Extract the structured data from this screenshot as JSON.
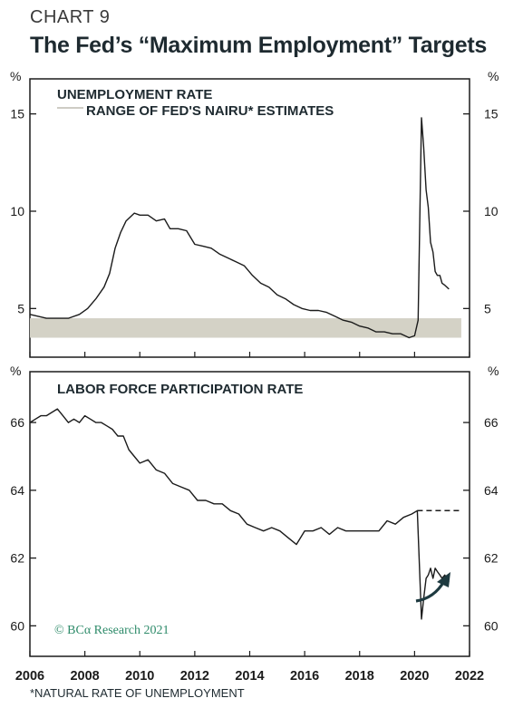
{
  "header": {
    "chart_number": "CHART 9",
    "title": "The Fed’s “Maximum Employment” Targets"
  },
  "footnote": "*NATURAL RATE OF UNEMPLOYMENT",
  "copyright": "© BCα Research 2021",
  "colors": {
    "line": "#1b1b1b",
    "band": "#d4d2c6",
    "copyright": "#2e8b6a",
    "arrow": "#1e3a40"
  },
  "x_axis": {
    "ticks": [
      "2006",
      "2008",
      "2010",
      "2012",
      "2014",
      "2016",
      "2018",
      "2020",
      "2022"
    ]
  },
  "chart_data": [
    {
      "type": "line",
      "panel": "top",
      "unit_label": "%",
      "legend": [
        "UNEMPLOYMENT RATE",
        "RANGE OF FED'S NAIRU* ESTIMATES"
      ],
      "xlim": [
        2006.0,
        2022.0
      ],
      "ylim": [
        2.5,
        16.8
      ],
      "yticks": [
        5,
        10,
        15
      ],
      "band": {
        "name": "RANGE OF FED'S NAIRU* ESTIMATES",
        "y0": 3.5,
        "y1": 4.5,
        "x0": 2006.0,
        "x1": 2021.7
      },
      "series": [
        {
          "name": "UNEMPLOYMENT RATE",
          "x": [
            2006.0,
            2006.3,
            2006.6,
            2007.0,
            2007.4,
            2007.8,
            2008.1,
            2008.4,
            2008.7,
            2008.9,
            2009.1,
            2009.3,
            2009.5,
            2009.8,
            2010.0,
            2010.3,
            2010.6,
            2010.9,
            2011.1,
            2011.4,
            2011.7,
            2012.0,
            2012.3,
            2012.6,
            2012.9,
            2013.2,
            2013.5,
            2013.8,
            2014.1,
            2014.4,
            2014.7,
            2015.0,
            2015.3,
            2015.6,
            2015.9,
            2016.2,
            2016.5,
            2016.8,
            2017.1,
            2017.4,
            2017.7,
            2018.0,
            2018.3,
            2018.6,
            2018.9,
            2019.2,
            2019.5,
            2019.8,
            2020.0,
            2020.13,
            2020.25,
            2020.33,
            2020.42,
            2020.5,
            2020.58,
            2020.67,
            2020.75,
            2020.83,
            2020.92,
            2021.0,
            2021.1,
            2021.25
          ],
          "values": [
            4.7,
            4.6,
            4.5,
            4.5,
            4.5,
            4.7,
            5.0,
            5.5,
            6.1,
            6.8,
            8.1,
            8.9,
            9.5,
            9.9,
            9.8,
            9.8,
            9.5,
            9.6,
            9.1,
            9.1,
            9.0,
            8.3,
            8.2,
            8.1,
            7.8,
            7.6,
            7.4,
            7.2,
            6.7,
            6.3,
            6.1,
            5.7,
            5.5,
            5.2,
            5.0,
            4.9,
            4.9,
            4.8,
            4.6,
            4.4,
            4.3,
            4.1,
            4.0,
            3.8,
            3.8,
            3.7,
            3.7,
            3.5,
            3.6,
            4.4,
            14.8,
            13.3,
            11.1,
            10.2,
            8.4,
            7.9,
            6.9,
            6.7,
            6.7,
            6.3,
            6.2,
            6.0
          ]
        }
      ]
    },
    {
      "type": "line",
      "panel": "bottom",
      "unit_label": "%",
      "legend": [
        "LABOR FORCE PARTICIPATION RATE"
      ],
      "xlim": [
        2006.0,
        2022.0
      ],
      "ylim": [
        59.1,
        67.5
      ],
      "yticks": [
        60,
        62,
        64,
        66
      ],
      "reference": {
        "y": 63.4,
        "x0": 2020.1,
        "x1": 2021.7,
        "style": "dashed"
      },
      "series": [
        {
          "name": "LABOR FORCE PARTICIPATION RATE",
          "x": [
            2006.0,
            2006.2,
            2006.4,
            2006.6,
            2006.8,
            2007.0,
            2007.2,
            2007.4,
            2007.6,
            2007.8,
            2008.0,
            2008.2,
            2008.4,
            2008.6,
            2008.8,
            2009.0,
            2009.2,
            2009.4,
            2009.6,
            2009.8,
            2010.0,
            2010.3,
            2010.6,
            2010.9,
            2011.2,
            2011.5,
            2011.8,
            2012.1,
            2012.4,
            2012.7,
            2013.0,
            2013.3,
            2013.6,
            2013.9,
            2014.2,
            2014.5,
            2014.8,
            2015.1,
            2015.4,
            2015.7,
            2016.0,
            2016.3,
            2016.6,
            2016.9,
            2017.2,
            2017.5,
            2017.8,
            2018.1,
            2018.4,
            2018.7,
            2019.0,
            2019.3,
            2019.6,
            2019.9,
            2020.1,
            2020.25,
            2020.33,
            2020.42,
            2020.5,
            2020.58,
            2020.67,
            2020.75,
            2020.83,
            2020.92,
            2021.0,
            2021.1,
            2021.25
          ],
          "values": [
            66.0,
            66.1,
            66.2,
            66.2,
            66.3,
            66.4,
            66.2,
            66.0,
            66.1,
            66.0,
            66.2,
            66.1,
            66.0,
            66.0,
            65.9,
            65.8,
            65.6,
            65.6,
            65.2,
            65.0,
            64.8,
            64.9,
            64.6,
            64.5,
            64.2,
            64.1,
            64.0,
            63.7,
            63.7,
            63.6,
            63.6,
            63.4,
            63.3,
            63.0,
            62.9,
            62.8,
            62.9,
            62.8,
            62.6,
            62.4,
            62.8,
            62.8,
            62.9,
            62.7,
            62.9,
            62.8,
            62.8,
            62.8,
            62.8,
            62.8,
            63.1,
            63.0,
            63.2,
            63.3,
            63.4,
            60.2,
            60.8,
            61.4,
            61.5,
            61.7,
            61.4,
            61.7,
            61.6,
            61.5,
            61.4,
            61.5,
            61.3
          ]
        }
      ]
    }
  ]
}
